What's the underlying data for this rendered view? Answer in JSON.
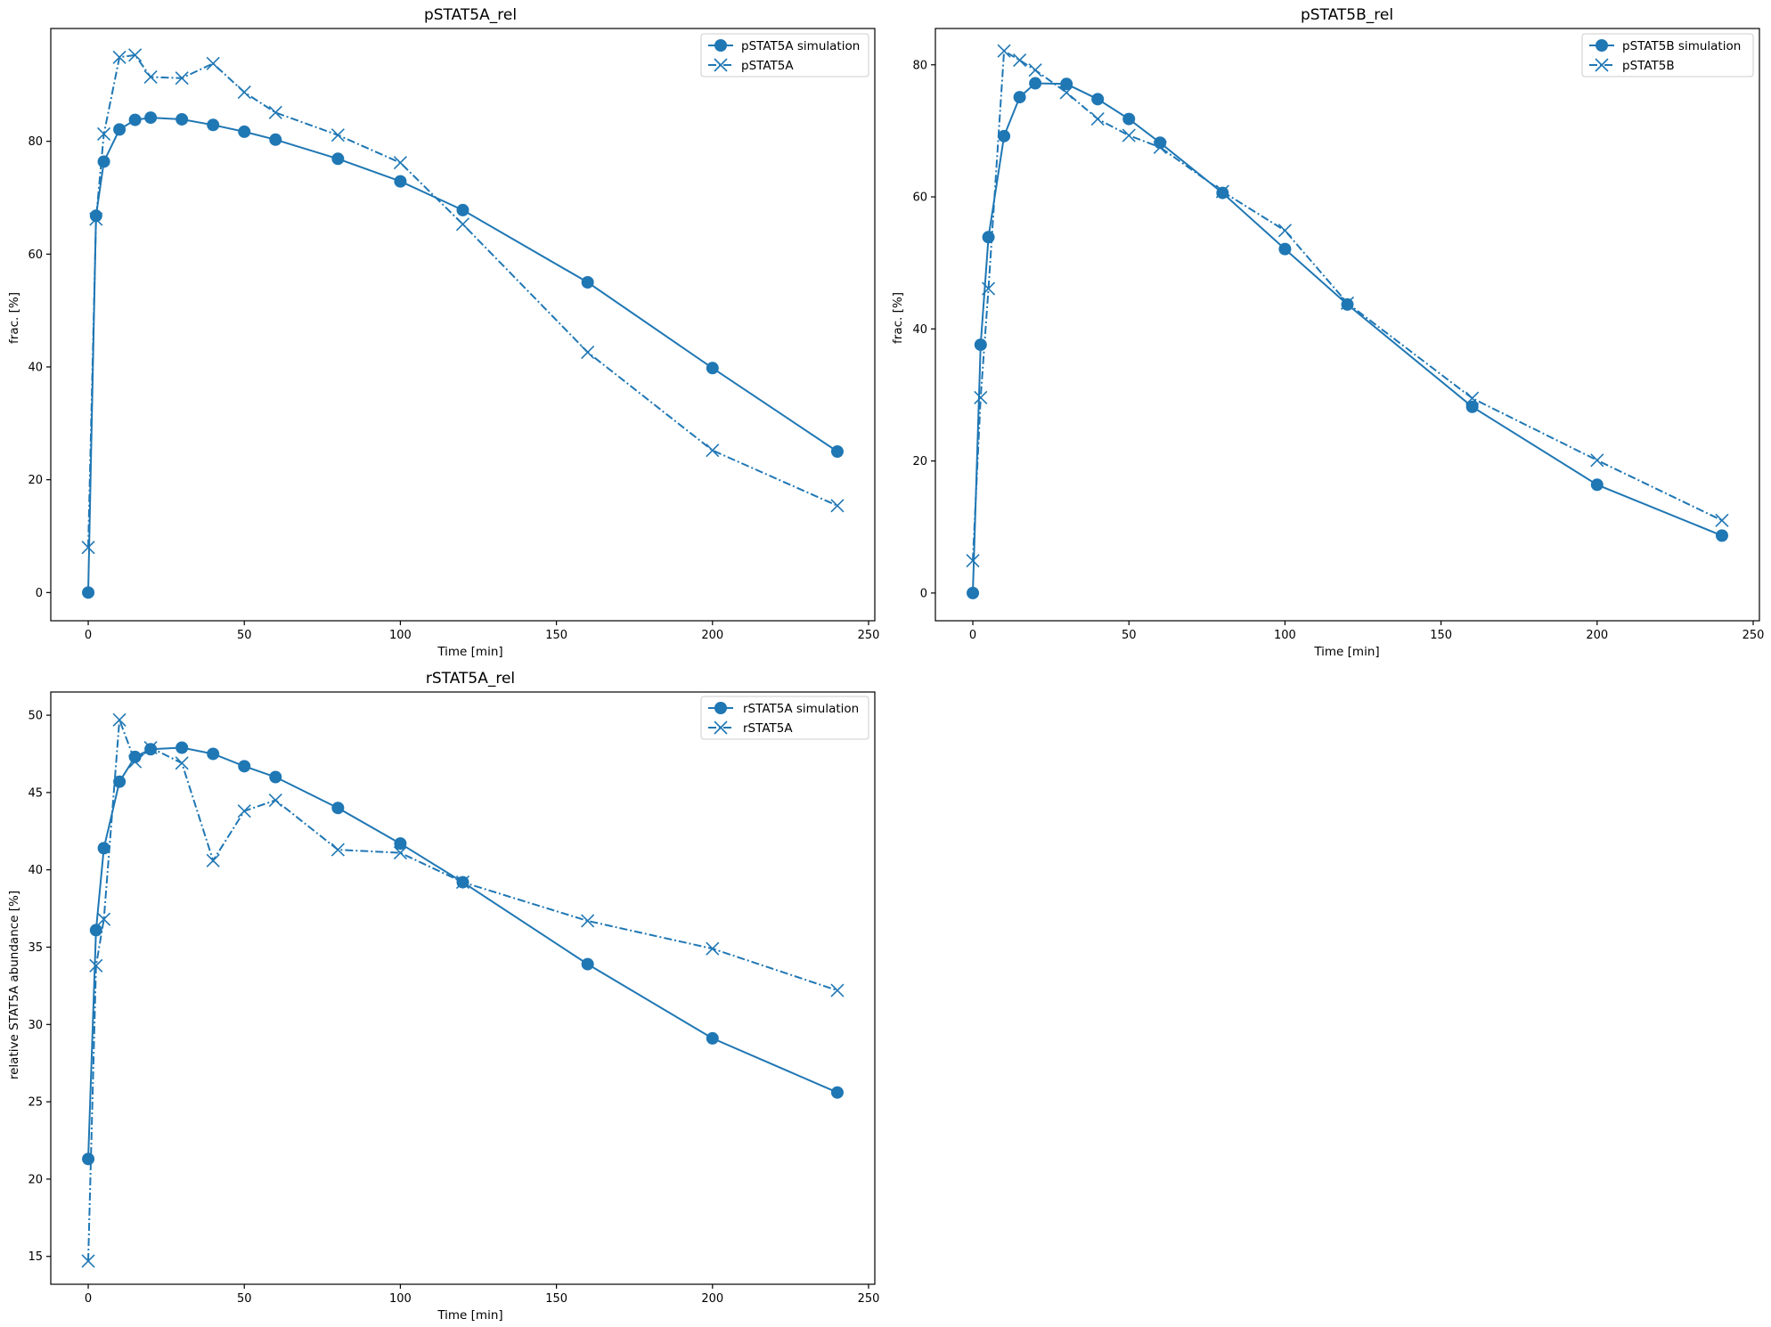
{
  "figure": {
    "line_color": "#1f77b4"
  },
  "chart_data": [
    {
      "type": "line",
      "title": "pSTAT5A_rel",
      "xlabel": "Time [min]",
      "ylabel": "frac. [%]",
      "xlim": [
        -12,
        252
      ],
      "ylim": [
        -5,
        100
      ],
      "xticks": [
        0,
        50,
        100,
        150,
        200,
        250
      ],
      "yticks": [
        0,
        20,
        40,
        60,
        80
      ],
      "legend": "top-right",
      "grid": false,
      "series": [
        {
          "name": "pSTAT5A simulation",
          "style": "solid-circle",
          "x": [
            0,
            2.5,
            5,
            10,
            15,
            20,
            30,
            40,
            50,
            60,
            80,
            100,
            120,
            160,
            200,
            240
          ],
          "y": [
            0,
            66.8,
            76.4,
            82.1,
            83.8,
            84.2,
            83.9,
            82.9,
            81.7,
            80.3,
            76.9,
            72.9,
            67.8,
            55.0,
            39.8,
            25.0
          ]
        },
        {
          "name": "pSTAT5A",
          "style": "dashdot-x",
          "x": [
            0,
            2.5,
            5,
            10,
            15,
            20,
            30,
            40,
            50,
            60,
            80,
            100,
            120,
            160,
            200,
            240
          ],
          "y": [
            8.0,
            66.2,
            81.3,
            94.9,
            95.3,
            91.4,
            91.2,
            93.8,
            88.7,
            85.1,
            81.1,
            76.2,
            65.3,
            42.6,
            25.2,
            15.4
          ]
        }
      ]
    },
    {
      "type": "line",
      "title": "pSTAT5B_rel",
      "xlabel": "Time [min]",
      "ylabel": "frac. [%]",
      "xlim": [
        -12,
        252
      ],
      "ylim": [
        -4.2,
        85.5
      ],
      "xticks": [
        0,
        50,
        100,
        150,
        200,
        250
      ],
      "yticks": [
        0,
        20,
        40,
        60,
        80
      ],
      "legend": "top-right",
      "grid": false,
      "series": [
        {
          "name": "pSTAT5B simulation",
          "style": "solid-circle",
          "x": [
            0,
            2.5,
            5,
            10,
            15,
            20,
            30,
            40,
            50,
            60,
            80,
            100,
            120,
            160,
            200,
            240
          ],
          "y": [
            0,
            37.6,
            53.9,
            69.2,
            75.1,
            77.2,
            77.1,
            74.8,
            71.8,
            68.2,
            60.6,
            52.1,
            43.7,
            28.2,
            16.4,
            8.7
          ]
        },
        {
          "name": "pSTAT5B",
          "style": "dashdot-x",
          "x": [
            0,
            2.5,
            5,
            10,
            15,
            20,
            30,
            40,
            50,
            60,
            80,
            100,
            120,
            160,
            200,
            240
          ],
          "y": [
            4.9,
            29.6,
            46.1,
            82.1,
            80.7,
            79.2,
            75.8,
            71.8,
            69.3,
            67.5,
            60.8,
            54.9,
            43.9,
            29.5,
            20.1,
            11.0
          ]
        }
      ]
    },
    {
      "type": "line",
      "title": "rSTAT5A_rel",
      "xlabel": "Time [min]",
      "ylabel": "relative STAT5A abundance [%]",
      "xlim": [
        -12,
        252
      ],
      "ylim": [
        13.2,
        51.5
      ],
      "xticks": [
        0,
        50,
        100,
        150,
        200,
        250
      ],
      "yticks": [
        15,
        20,
        25,
        30,
        35,
        40,
        45,
        50
      ],
      "legend": "top-right",
      "grid": false,
      "series": [
        {
          "name": "rSTAT5A simulation",
          "style": "solid-circle",
          "x": [
            0,
            2.5,
            5,
            10,
            15,
            20,
            30,
            40,
            50,
            60,
            80,
            100,
            120,
            160,
            200,
            240
          ],
          "y": [
            21.3,
            36.1,
            41.4,
            45.7,
            47.3,
            47.8,
            47.9,
            47.5,
            46.7,
            46.0,
            44.0,
            41.7,
            39.2,
            33.9,
            29.1,
            25.6
          ]
        },
        {
          "name": "rSTAT5A",
          "style": "dashdot-x",
          "x": [
            0,
            2.5,
            5,
            10,
            15,
            20,
            30,
            40,
            50,
            60,
            80,
            100,
            120,
            160,
            200,
            240
          ],
          "y": [
            14.7,
            33.8,
            36.8,
            49.7,
            47.0,
            47.9,
            46.9,
            40.6,
            43.8,
            44.5,
            41.3,
            41.1,
            39.2,
            36.7,
            34.9,
            32.2
          ]
        }
      ]
    }
  ]
}
